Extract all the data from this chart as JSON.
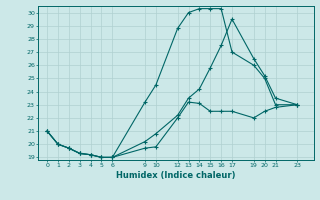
{
  "xlabel": "Humidex (Indice chaleur)",
  "background_color": "#cce8e8",
  "grid_color": "#b0d0d0",
  "line_color": "#006666",
  "ylim": [
    18.8,
    30.5
  ],
  "xlim": [
    -0.8,
    24.5
  ],
  "yticks": [
    19,
    20,
    21,
    22,
    23,
    24,
    25,
    26,
    27,
    28,
    29,
    30
  ],
  "xticks": [
    0,
    1,
    2,
    3,
    4,
    5,
    6,
    9,
    10,
    12,
    13,
    14,
    15,
    16,
    17,
    19,
    20,
    21,
    23
  ],
  "line1_x": [
    0,
    1,
    2,
    3,
    4,
    5,
    6,
    9,
    10,
    12,
    13,
    14,
    15,
    16,
    17,
    19,
    20,
    21,
    23
  ],
  "line1_y": [
    21.0,
    20.0,
    19.7,
    19.3,
    19.2,
    19.0,
    19.0,
    19.7,
    19.8,
    22.0,
    23.2,
    23.1,
    22.5,
    22.5,
    22.5,
    22.0,
    22.5,
    22.8,
    23.0
  ],
  "line2_x": [
    0,
    1,
    2,
    3,
    4,
    5,
    6,
    9,
    10,
    12,
    13,
    14,
    15,
    16,
    17,
    19,
    20,
    21,
    23
  ],
  "line2_y": [
    21.0,
    20.0,
    19.7,
    19.3,
    19.2,
    19.0,
    19.0,
    23.2,
    24.5,
    28.8,
    30.0,
    30.3,
    30.3,
    30.3,
    27.0,
    26.0,
    25.0,
    23.0,
    23.0
  ],
  "line3_x": [
    0,
    1,
    2,
    3,
    4,
    5,
    6,
    9,
    10,
    12,
    13,
    14,
    15,
    16,
    17,
    19,
    20,
    21,
    23
  ],
  "line3_y": [
    21.0,
    20.0,
    19.7,
    19.3,
    19.2,
    19.0,
    19.0,
    20.2,
    20.8,
    22.2,
    23.5,
    24.2,
    25.8,
    27.5,
    29.5,
    26.5,
    25.2,
    23.5,
    23.0
  ]
}
